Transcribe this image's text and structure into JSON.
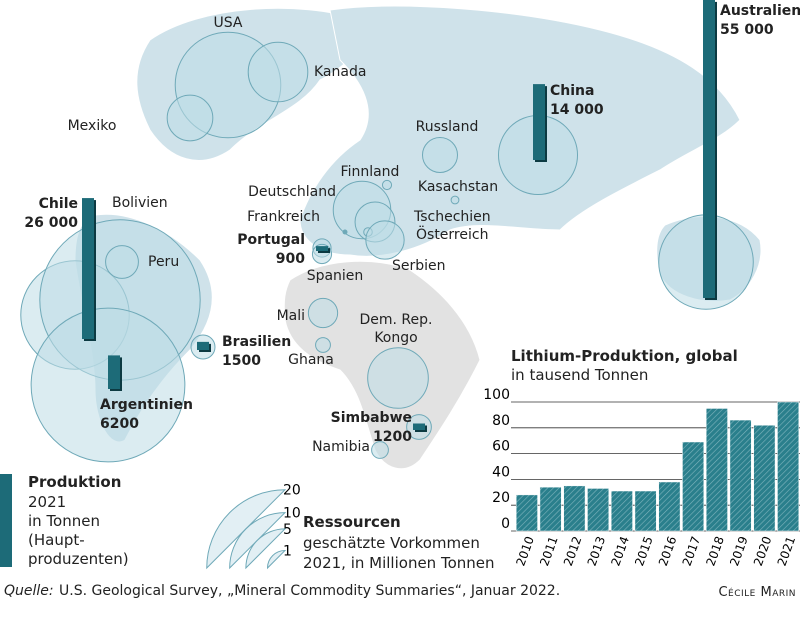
{
  "map": {
    "countries": [
      {
        "name": "USA",
        "resources": 9.1
      },
      {
        "name": "Kanada",
        "resources": 2.9
      },
      {
        "name": "Mexiko",
        "resources": 1.7
      },
      {
        "name": "Russland",
        "resources": 1
      },
      {
        "name": "China",
        "resources": 5.1,
        "production": 14000,
        "production_label": "14 000"
      },
      {
        "name": "Australien",
        "resources": 7.3,
        "production": 55000,
        "production_label": "55 000"
      },
      {
        "name": "Chile",
        "resources": 9.6,
        "production": 26000,
        "production_label": "26 000"
      },
      {
        "name": "Bolivien",
        "resources": 21
      },
      {
        "name": "Peru",
        "resources": 0.88
      },
      {
        "name": "Argentinien",
        "resources": 19.3,
        "production": 6200,
        "production_label": "6200"
      },
      {
        "name": "Brasilien",
        "resources": 0.47,
        "production": 1500,
        "production_label": "1500"
      },
      {
        "name": "Deutschland",
        "resources": 2.7
      },
      {
        "name": "Frankreich"
      },
      {
        "name": "Tschechien",
        "resources": 1.3
      },
      {
        "name": "Österreich",
        "resources": 0.06
      },
      {
        "name": "Serbien",
        "resources": 1.2
      },
      {
        "name": "Finnland",
        "resources": 0.068
      },
      {
        "name": "Kasachstan",
        "resources": 0.05
      },
      {
        "name": "Portugal",
        "resources": 0.27,
        "production": 900,
        "production_label": "900"
      },
      {
        "name": "Spanien",
        "resources": 0.3
      },
      {
        "name": "Mali",
        "resources": 0.7
      },
      {
        "name": "Ghana",
        "resources": 0.18
      },
      {
        "name": "Dem. Rep. Kongo",
        "resources": 3
      },
      {
        "name": "Simbabwe",
        "resources": 0.5,
        "production": 1200,
        "production_label": "1200"
      },
      {
        "name": "Namibia",
        "resources": 0.23
      }
    ]
  },
  "legend": {
    "production_title": "Produktion",
    "production_lines": [
      "2021",
      "in Tonnen",
      "(Haupt-",
      "produzenten)"
    ],
    "resources_title": "Ressourcen",
    "resources_lines": [
      "geschätzte Vorkommen",
      "2021, in Millionen Tonnen"
    ],
    "resources_ticks": [
      20,
      10,
      5,
      1
    ]
  },
  "chart_data": {
    "type": "bar",
    "title": "Lithium-Produktion, global",
    "subtitle": "in tausend Tonnen",
    "categories": [
      "2010",
      "2011",
      "2012",
      "2013",
      "2014",
      "2015",
      "2016",
      "2017",
      "2018",
      "2019",
      "2020",
      "2021"
    ],
    "values": [
      28,
      34,
      35,
      33,
      31,
      31,
      38,
      69,
      95,
      86,
      82,
      100
    ],
    "color": "#2a7f8c",
    "ylim": [
      0,
      100
    ],
    "yticks": [
      0,
      20,
      40,
      60,
      80,
      100
    ],
    "grid": true
  },
  "source": {
    "label": "Quelle:",
    "text": "U.S. Geological Survey, „Mineral Commodity Summaries“, Januar 2022."
  },
  "credit": "Cécile Marin"
}
